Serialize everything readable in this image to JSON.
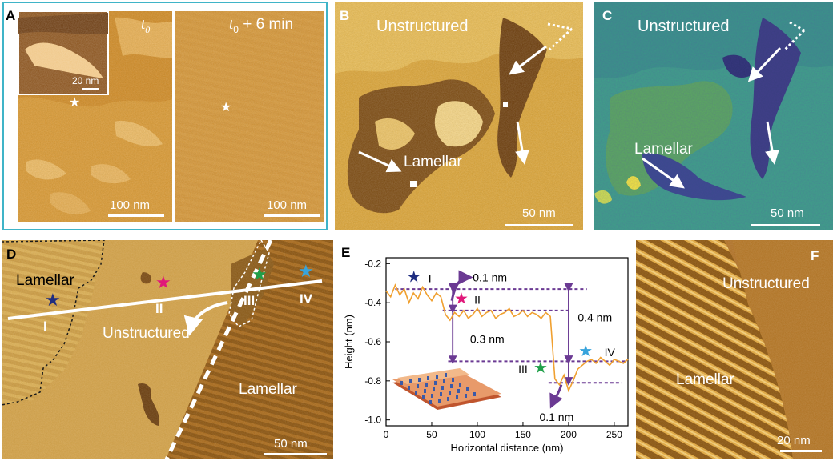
{
  "panels": {
    "a": {
      "label": "A",
      "time_left": "t",
      "time_left_sub": "0",
      "time_right": "t",
      "time_right_sub": "0",
      "time_right_suffix": " + 6 min",
      "inset_scale": "20 nm",
      "scale_left": "100 nm",
      "scale_right": "100 nm",
      "frame_color": "#3fb4c8"
    },
    "b": {
      "label": "B",
      "unstructured": "Unstructured",
      "lamellar": "Lamellar",
      "scale": "50 nm"
    },
    "c": {
      "label": "C",
      "unstructured": "Unstructured",
      "lamellar": "Lamellar",
      "scale": "50 nm"
    },
    "d": {
      "label": "D",
      "lamellar_left": "Lamellar",
      "unstructured": "Unstructured",
      "lamellar_right": "Lamellar",
      "scale": "50 nm",
      "markers": [
        "I",
        "II",
        "III",
        "IV"
      ]
    },
    "e": {
      "label": "E"
    },
    "f": {
      "label": "F",
      "unstructured": "Unstructured",
      "lamellar": "Lamellar",
      "scale": "20 nm"
    }
  },
  "star_colors": {
    "I": "#1f2d80",
    "II": "#e0187a",
    "III": "#20a04a",
    "IV": "#38a4dc"
  },
  "chart_data": {
    "type": "line",
    "xlabel": "Horizontal distance (nm)",
    "ylabel": "Height (nm)",
    "xlim": [
      0,
      265
    ],
    "ylim": [
      -1.03,
      -0.17
    ],
    "xticks": [
      0,
      50,
      100,
      150,
      200,
      250
    ],
    "yticks": [
      -1.0,
      -0.8,
      -0.6,
      -0.4,
      -0.2
    ],
    "line_color": "#f0a030",
    "series": [
      {
        "name": "height profile",
        "x": [
          0,
          5,
          10,
          15,
          20,
          25,
          30,
          35,
          40,
          45,
          50,
          55,
          60,
          65,
          70,
          75,
          80,
          85,
          90,
          95,
          100,
          105,
          110,
          115,
          120,
          125,
          130,
          135,
          140,
          145,
          150,
          155,
          160,
          165,
          170,
          175,
          180,
          185,
          190,
          195,
          200,
          205,
          210,
          215,
          220,
          225,
          230,
          235,
          240,
          245,
          250,
          255,
          260,
          265
        ],
        "y": [
          -0.34,
          -0.37,
          -0.31,
          -0.36,
          -0.33,
          -0.4,
          -0.35,
          -0.38,
          -0.32,
          -0.36,
          -0.39,
          -0.35,
          -0.37,
          -0.46,
          -0.49,
          -0.45,
          -0.47,
          -0.44,
          -0.48,
          -0.46,
          -0.43,
          -0.47,
          -0.45,
          -0.44,
          -0.48,
          -0.46,
          -0.45,
          -0.43,
          -0.47,
          -0.46,
          -0.44,
          -0.47,
          -0.45,
          -0.46,
          -0.48,
          -0.45,
          -0.47,
          -0.79,
          -0.82,
          -0.77,
          -0.85,
          -0.8,
          -0.74,
          -0.72,
          -0.7,
          -0.69,
          -0.71,
          -0.68,
          -0.7,
          -0.72,
          -0.69,
          -0.7,
          -0.71,
          -0.69
        ]
      }
    ],
    "reference_levels": [
      -0.33,
      -0.44,
      -0.7,
      -0.81
    ],
    "annotations": [
      {
        "text": "I",
        "x": 48,
        "y": -0.27
      },
      {
        "text": "II",
        "x": 100,
        "y": -0.38
      },
      {
        "text": "III",
        "x": 150,
        "y": -0.735
      },
      {
        "text": "IV",
        "x": 245,
        "y": -0.65
      },
      {
        "text": "0.1 nm",
        "x": 95,
        "y": -0.27
      },
      {
        "text": "0.3 nm",
        "x": 92,
        "y": -0.585
      },
      {
        "text": "0.4 nm",
        "x": 210,
        "y": -0.475
      },
      {
        "text": "0.1 nm",
        "x": 168,
        "y": -0.985
      }
    ]
  }
}
